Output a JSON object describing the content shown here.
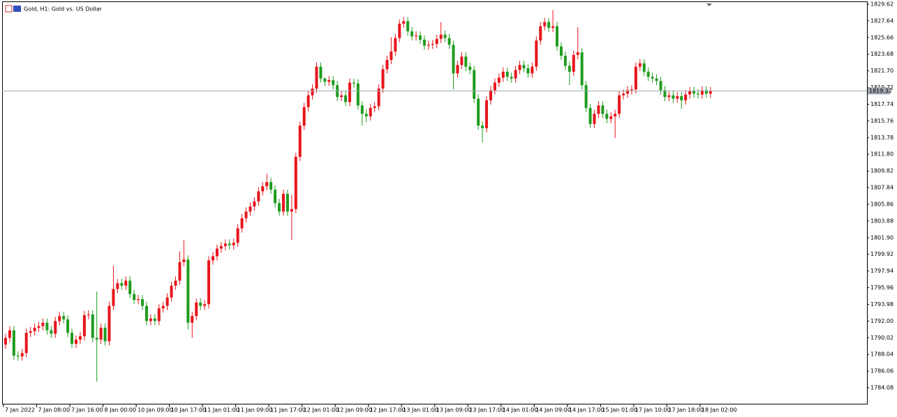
{
  "chart_data": {
    "type": "candlestick",
    "title": "Gold, H1:  Gold vs. US Dollar",
    "up_color": "#e8151b",
    "down_color": "#1f9c1f",
    "current_price": 1819.32,
    "ylim": [
      1782.1,
      1829.95
    ],
    "yticks": [
      1784.08,
      1786.06,
      1788.04,
      1790.02,
      {
        "value": 1792,
        "label": "1792.00"
      },
      1793.98,
      1795.96,
      1797.94,
      1799.92,
      {
        "value": 1801.9,
        "label": "1801.90"
      },
      1803.88,
      1805.86,
      1807.84,
      1809.82,
      {
        "value": 1811.8,
        "label": "1811.80"
      },
      1813.78,
      1815.76,
      1817.74,
      1819.72,
      {
        "value": 1821.7,
        "label": "1821.70"
      },
      1823.68,
      1825.66,
      1827.64,
      1829.62
    ],
    "x": [
      "7 Jan 2022",
      null,
      null,
      null,
      null,
      null,
      null,
      null,
      "7 Jan 08:00",
      null,
      null,
      null,
      null,
      null,
      null,
      null,
      "7 Jan 16:00",
      null,
      null,
      null,
      null,
      null,
      null,
      null,
      "8 Jan 00:00",
      null,
      null,
      null,
      null,
      null,
      null,
      null,
      "10 Jan 09:00",
      null,
      null,
      null,
      null,
      null,
      null,
      null,
      "10 Jan 17:00",
      null,
      null,
      null,
      null,
      null,
      null,
      null,
      "11 Jan 01:00",
      null,
      null,
      null,
      null,
      null,
      null,
      null,
      "11 Jan 09:00",
      null,
      null,
      null,
      null,
      null,
      null,
      null,
      "11 Jan 17:00",
      null,
      null,
      null,
      null,
      null,
      null,
      null,
      "12 Jan 01:00",
      null,
      null,
      null,
      null,
      null,
      null,
      null,
      "12 Jan 09:00",
      null,
      null,
      null,
      null,
      null,
      null,
      null,
      "12 Jan 17:00",
      null,
      null,
      null,
      null,
      null,
      null,
      null,
      "13 Jan 01:00",
      null,
      null,
      null,
      null,
      null,
      null,
      null,
      "13 Jan 09:00",
      null,
      null,
      null,
      null,
      null,
      null,
      null,
      "13 Jan 17:00",
      null,
      null,
      null,
      null,
      null,
      null,
      null,
      "14 Jan 01:00",
      null,
      null,
      null,
      null,
      null,
      null,
      null,
      "14 Jan 09:00",
      null,
      null,
      null,
      null,
      null,
      null,
      null,
      "14 Jan 17:00",
      null,
      null,
      null,
      null,
      null,
      null,
      null,
      "15 Jan 01:00",
      null,
      null,
      null,
      null,
      null,
      null,
      null,
      "17 Jan 10:00",
      null,
      null,
      null,
      null,
      null,
      null,
      null,
      "17 Jan 18:00",
      null,
      null,
      null,
      null,
      null,
      null,
      null,
      "18 Jan 02:00",
      null,
      null
    ],
    "open": [
      1789.2,
      1790.0,
      1790.9,
      1787.9,
      1787.8,
      1788.2,
      1790.6,
      1790.8,
      1791.2,
      1791.4,
      1791.8,
      1790.9,
      1790.5,
      1792.0,
      1792.6,
      1792.2,
      1790.6,
      1789.3,
      1789.8,
      1790.2,
      1792.7,
      1792.8,
      1790.0,
      1789.8,
      1791.2,
      1789.6,
      1793.8,
      1795.8,
      1796.5,
      1796.2,
      1796.8,
      1795.2,
      1794.5,
      1794.6,
      1793.8,
      1792.0,
      1792.3,
      1792.0,
      1793.5,
      1793.8,
      1794.8,
      1796.2,
      1796.8,
      1799.0,
      1799.3,
      1791.8,
      1792.6,
      1794.2,
      1793.8,
      1794.0,
      1799.2,
      1799.7,
      1800.6,
      1800.9,
      1801.2,
      1801.0,
      1801.3,
      1803.0,
      1804.2,
      1805.0,
      1805.6,
      1806.2,
      1807.4,
      1808.0,
      1808.5,
      1807.6,
      1806.0,
      1805.0,
      1807.1,
      1805.0,
      1805.3,
      1811.5,
      1815.2,
      1817.4,
      1818.8,
      1819.6,
      1822.2,
      1820.8,
      1820.4,
      1820.6,
      1820.0,
      1818.6,
      1818.8,
      1818.0,
      1820.3,
      1820.2,
      1817.6,
      1816.6,
      1816.3,
      1817.3,
      1817.5,
      1819.6,
      1821.9,
      1823.0,
      1824.0,
      1825.6,
      1827.3,
      1827.6,
      1826.4,
      1825.8,
      1825.9,
      1825.4,
      1824.7,
      1824.8,
      1824.9,
      1825.5,
      1826.0,
      1825.6,
      1824.8,
      1821.4,
      1822.4,
      1823.4,
      1822.2,
      1821.8,
      1818.4,
      1815.2,
      1814.9,
      1818.2,
      1819.4,
      1820.3,
      1820.9,
      1821.6,
      1821.0,
      1820.8,
      1821.8,
      1822.4,
      1822.0,
      1821.4,
      1822.2,
      1825.3,
      1827.0,
      1827.5,
      1826.8,
      1827.0,
      1824.6,
      1823.5,
      1822.3,
      1821.6,
      1823.6,
      1823.9,
      1820.0,
      1817.3,
      1815.4,
      1816.6,
      1817.6,
      1816.6,
      1816.0,
      1816.3,
      1816.6,
      1818.8,
      1819.0,
      1819.4,
      1819.5,
      1822.2,
      1822.6,
      1821.6,
      1821.0,
      1820.8,
      1820.5,
      1819.4,
      1818.6,
      1818.8,
      1818.4,
      1818.7,
      1818.2,
      1818.9,
      1819.3,
      1819.0,
      1818.9,
      1819.4,
      1819.0
    ],
    "high": [
      1790.5,
      1791.4,
      1791.4,
      1788.4,
      1788.7,
      1791.1,
      1791.3,
      1791.7,
      1791.9,
      1792.3,
      1792.3,
      1791.4,
      1792.5,
      1793.1,
      1793.1,
      1792.7,
      1791.1,
      1790.3,
      1790.7,
      1793.2,
      1793.3,
      1793.3,
      1795.5,
      1791.7,
      1791.7,
      1794.3,
      1798.6,
      1797.0,
      1797.0,
      1797.3,
      1797.3,
      1795.7,
      1795.1,
      1795.1,
      1794.3,
      1792.8,
      1792.8,
      1794.0,
      1794.3,
      1795.3,
      1796.7,
      1797.3,
      1800.3,
      1801.6,
      1799.8,
      1793.1,
      1794.7,
      1794.7,
      1794.5,
      1799.7,
      1800.2,
      1801.1,
      1801.4,
      1801.7,
      1801.7,
      1801.8,
      1803.5,
      1804.7,
      1805.5,
      1806.1,
      1806.7,
      1807.9,
      1808.5,
      1809.5,
      1809.0,
      1808.1,
      1806.5,
      1807.6,
      1807.6,
      1807.0,
      1812.0,
      1815.7,
      1817.9,
      1819.3,
      1820.1,
      1822.7,
      1822.7,
      1820.9,
      1821.1,
      1821.1,
      1820.5,
      1819.3,
      1819.3,
      1820.8,
      1820.8,
      1820.7,
      1818.1,
      1817.1,
      1817.8,
      1818.0,
      1820.1,
      1822.4,
      1823.5,
      1825.7,
      1826.1,
      1827.8,
      1828.1,
      1828.1,
      1826.9,
      1826.4,
      1826.4,
      1825.9,
      1825.3,
      1825.4,
      1826.0,
      1827.5,
      1826.5,
      1826.1,
      1825.3,
      1822.9,
      1823.9,
      1823.9,
      1822.7,
      1822.3,
      1818.9,
      1815.7,
      1818.7,
      1819.9,
      1820.8,
      1821.4,
      1822.1,
      1822.1,
      1821.5,
      1822.3,
      1822.9,
      1822.9,
      1822.5,
      1822.7,
      1825.8,
      1827.5,
      1828.0,
      1828.0,
      1828.9,
      1827.5,
      1825.1,
      1824.0,
      1822.8,
      1824.1,
      1826.9,
      1824.4,
      1820.5,
      1817.8,
      1817.1,
      1818.1,
      1818.1,
      1817.1,
      1816.8,
      1817.1,
      1819.3,
      1819.5,
      1819.9,
      1820.0,
      1822.7,
      1823.1,
      1823.1,
      1822.1,
      1821.5,
      1821.3,
      1821.0,
      1819.9,
      1819.3,
      1819.3,
      1819.2,
      1819.2,
      1819.4,
      1819.8,
      1819.8,
      1819.5,
      1819.9,
      1819.9,
      1819.8
    ],
    "low": [
      1788.7,
      1789.5,
      1787.4,
      1787.3,
      1787.3,
      1787.7,
      1790.1,
      1790.3,
      1790.7,
      1790.9,
      1790.4,
      1790.0,
      1790.0,
      1791.5,
      1791.7,
      1790.1,
      1788.8,
      1788.8,
      1789.3,
      1789.7,
      1792.2,
      1789.5,
      1784.8,
      1789.3,
      1789.1,
      1789.1,
      1793.3,
      1795.3,
      1795.7,
      1795.7,
      1794.7,
      1794.0,
      1794.0,
      1793.3,
      1791.5,
      1791.5,
      1791.5,
      1791.5,
      1793.0,
      1793.3,
      1794.3,
      1795.7,
      1796.3,
      1798.5,
      1791.0,
      1790.0,
      1792.1,
      1793.3,
      1793.3,
      1793.5,
      1798.7,
      1799.2,
      1800.1,
      1800.4,
      1800.5,
      1800.5,
      1800.8,
      1802.5,
      1803.7,
      1804.5,
      1805.1,
      1805.7,
      1806.9,
      1807.5,
      1807.1,
      1805.5,
      1804.5,
      1804.5,
      1804.5,
      1801.6,
      1804.8,
      1811.0,
      1814.7,
      1816.9,
      1818.3,
      1819.1,
      1820.3,
      1819.9,
      1819.9,
      1819.5,
      1818.1,
      1818.1,
      1817.5,
      1817.5,
      1819.7,
      1817.1,
      1815.2,
      1815.6,
      1815.8,
      1816.8,
      1817.0,
      1819.1,
      1821.4,
      1822.5,
      1823.5,
      1825.1,
      1826.8,
      1825.9,
      1825.3,
      1825.3,
      1824.9,
      1824.2,
      1824.2,
      1824.3,
      1824.4,
      1825.0,
      1825.1,
      1824.3,
      1819.5,
      1820.9,
      1821.9,
      1821.7,
      1821.3,
      1817.9,
      1814.7,
      1813.2,
      1814.4,
      1817.7,
      1818.9,
      1819.8,
      1820.4,
      1820.5,
      1820.3,
      1820.3,
      1821.3,
      1821.5,
      1820.9,
      1820.9,
      1821.7,
      1824.8,
      1826.5,
      1826.3,
      1826.3,
      1824.1,
      1823.0,
      1821.8,
      1820.0,
      1821.1,
      1823.1,
      1819.5,
      1816.8,
      1814.9,
      1814.9,
      1816.1,
      1816.1,
      1815.5,
      1815.5,
      1813.7,
      1816.1,
      1818.3,
      1818.5,
      1818.9,
      1819.0,
      1821.7,
      1821.1,
      1820.5,
      1820.3,
      1820.0,
      1818.9,
      1818.1,
      1818.1,
      1817.9,
      1817.9,
      1817.2,
      1817.7,
      1818.4,
      1818.5,
      1818.4,
      1818.4,
      1818.5,
      1818.5
    ],
    "close": [
      1790.0,
      1790.9,
      1787.9,
      1787.8,
      1788.2,
      1790.6,
      1790.8,
      1791.2,
      1791.4,
      1791.8,
      1790.9,
      1790.5,
      1792.0,
      1792.6,
      1792.2,
      1790.6,
      1789.3,
      1789.8,
      1790.2,
      1792.7,
      1792.8,
      1790.0,
      1789.8,
      1791.2,
      1789.6,
      1793.8,
      1795.8,
      1796.5,
      1796.2,
      1796.8,
      1795.2,
      1794.5,
      1794.6,
      1793.8,
      1792.0,
      1792.3,
      1792.0,
      1793.5,
      1793.8,
      1794.8,
      1796.2,
      1796.8,
      1799.0,
      1799.3,
      1791.8,
      1792.6,
      1794.2,
      1793.8,
      1794.0,
      1799.2,
      1799.7,
      1800.6,
      1800.9,
      1801.2,
      1801.0,
      1801.3,
      1803.0,
      1804.2,
      1805.0,
      1805.6,
      1806.2,
      1807.4,
      1808.0,
      1808.5,
      1807.6,
      1806.0,
      1805.0,
      1807.1,
      1805.0,
      1805.3,
      1811.5,
      1815.2,
      1817.4,
      1818.8,
      1819.6,
      1822.2,
      1820.8,
      1820.4,
      1820.6,
      1820.0,
      1818.6,
      1818.8,
      1818.0,
      1820.3,
      1820.2,
      1817.6,
      1816.6,
      1816.3,
      1817.3,
      1817.5,
      1819.6,
      1821.9,
      1823.0,
      1824.0,
      1825.6,
      1827.3,
      1827.6,
      1826.4,
      1825.8,
      1825.9,
      1825.4,
      1824.7,
      1824.8,
      1824.9,
      1825.5,
      1826.0,
      1825.6,
      1824.8,
      1821.4,
      1822.4,
      1823.4,
      1822.2,
      1821.8,
      1818.4,
      1815.2,
      1814.9,
      1818.2,
      1819.4,
      1820.3,
      1820.9,
      1821.6,
      1821.0,
      1820.8,
      1821.8,
      1822.4,
      1822.0,
      1821.4,
      1822.2,
      1825.3,
      1827.0,
      1827.5,
      1826.8,
      1827.0,
      1824.6,
      1823.5,
      1822.3,
      1821.6,
      1823.6,
      1823.9,
      1820.0,
      1817.3,
      1815.4,
      1816.6,
      1817.6,
      1816.6,
      1816.0,
      1816.3,
      1816.6,
      1818.8,
      1819.0,
      1819.4,
      1819.5,
      1822.2,
      1822.6,
      1821.6,
      1821.0,
      1820.8,
      1820.5,
      1819.4,
      1818.6,
      1818.8,
      1818.4,
      1818.7,
      1818.2,
      1818.9,
      1819.3,
      1819.0,
      1818.9,
      1819.4,
      1819.0,
      1819.3
    ]
  }
}
